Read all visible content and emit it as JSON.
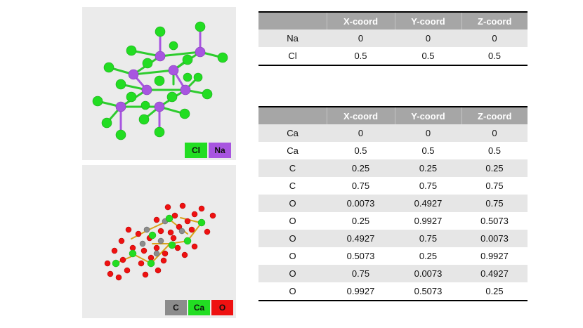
{
  "nacl_panel": {
    "legend": [
      {
        "label": "Cl",
        "color": "#22dd22"
      },
      {
        "label": "Na",
        "color": "#a855e0"
      }
    ]
  },
  "caco3_panel": {
    "legend": [
      {
        "label": "C",
        "color": "#8c8c8c"
      },
      {
        "label": "Ca",
        "color": "#22dd22"
      },
      {
        "label": "O",
        "color": "#ee1111"
      }
    ]
  },
  "nacl_table": {
    "headers": [
      "",
      "X-coord",
      "Y-coord",
      "Z-coord"
    ],
    "rows": [
      [
        "Na",
        "0",
        "0",
        "0"
      ],
      [
        "Cl",
        "0.5",
        "0.5",
        "0.5"
      ]
    ]
  },
  "caco3_table": {
    "headers": [
      "",
      "X-coord",
      "Y-coord",
      "Z-coord"
    ],
    "rows": [
      [
        "Ca",
        "0",
        "0",
        "0"
      ],
      [
        "Ca",
        "0.5",
        "0.5",
        "0.5"
      ],
      [
        "C",
        "0.25",
        "0.25",
        "0.25"
      ],
      [
        "C",
        "0.75",
        "0.75",
        "0.75"
      ],
      [
        "O",
        "0.0073",
        "0.4927",
        "0.75"
      ],
      [
        "O",
        "0.25",
        "0.9927",
        "0.5073"
      ],
      [
        "O",
        "0.4927",
        "0.75",
        "0.0073"
      ],
      [
        "O",
        "0.5073",
        "0.25",
        "0.9927"
      ],
      [
        "O",
        "0.75",
        "0.0073",
        "0.4927"
      ],
      [
        "O",
        "0.9927",
        "0.5073",
        "0.25"
      ]
    ]
  }
}
